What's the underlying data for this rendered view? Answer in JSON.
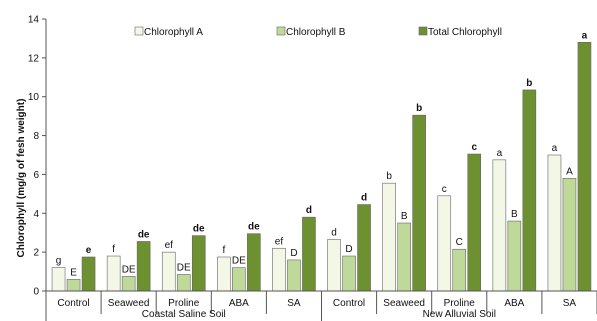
{
  "chart_data": {
    "type": "bar",
    "ylabel": "Chlorophyll (mg/g of fesh weight)",
    "ylim": [
      0,
      14
    ],
    "yticks": [
      0,
      2,
      4,
      6,
      8,
      10,
      12,
      14
    ],
    "categories": [
      "Control",
      "Seaweed",
      "Proline",
      "ABA",
      "SA",
      "Control",
      "Seaweed",
      "Proline",
      "ABA",
      "SA"
    ],
    "groups": [
      {
        "label": "Coastal Saline Soil",
        "categories": [
          0,
          1,
          2,
          3,
          4
        ]
      },
      {
        "label": "New Alluvial Soil",
        "categories": [
          5,
          6,
          7,
          8,
          9
        ]
      }
    ],
    "legend_position": "top",
    "grid": false,
    "series": [
      {
        "name": "Chlorophyll A",
        "color": "#f3f7e6",
        "values": [
          1.2,
          1.8,
          2.0,
          1.75,
          2.2,
          2.65,
          5.55,
          4.9,
          6.75,
          7.0
        ],
        "labels": [
          "g",
          "f",
          "ef",
          "f",
          "ef",
          "d",
          "b",
          "c",
          "a",
          "a"
        ]
      },
      {
        "name": "Chlorophyll B",
        "color": "#bfd99a",
        "values": [
          0.6,
          0.75,
          0.85,
          1.2,
          1.6,
          1.8,
          3.5,
          2.15,
          3.6,
          5.8
        ],
        "labels": [
          "E",
          "DE",
          "DE",
          "DE",
          "D",
          "D",
          "B",
          "C",
          "B",
          "A"
        ]
      },
      {
        "name": "Total Chlorophyll",
        "color": "#6d9030",
        "values": [
          1.75,
          2.55,
          2.85,
          2.95,
          3.8,
          4.45,
          9.05,
          7.05,
          10.35,
          12.8
        ],
        "labels": [
          "e",
          "de",
          "de",
          "de",
          "d",
          "d",
          "b",
          "c",
          "b",
          "a"
        ]
      }
    ]
  }
}
